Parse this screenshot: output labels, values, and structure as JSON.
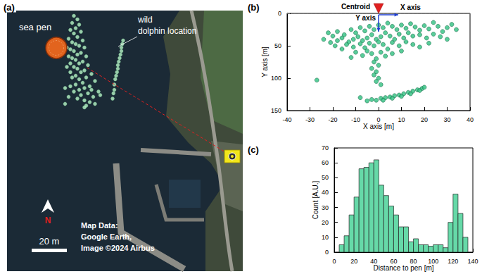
{
  "chart_data": [
    {
      "type": "scatter",
      "title": "(a)",
      "xlim": [
        0,
        134
      ],
      "ylim": [
        0,
        148
      ],
      "tick_labels": false,
      "grid": false,
      "color": "#b9f5c8",
      "marker": "circle",
      "x": [
        38,
        40,
        37,
        41,
        39,
        36,
        42,
        38,
        40,
        35,
        43,
        37,
        39,
        41,
        34,
        44,
        36,
        38,
        42,
        40,
        35,
        45,
        37,
        39,
        43,
        41,
        36,
        46,
        34,
        38,
        40,
        44,
        42,
        36,
        48,
        39,
        45,
        37,
        41,
        50,
        43,
        39,
        47,
        36,
        44,
        41,
        52,
        38,
        46,
        42,
        49,
        40,
        44,
        47,
        35,
        33,
        50,
        45,
        53,
        48,
        44,
        33,
        66,
        65.5,
        65,
        65,
        64.5,
        64,
        63.5,
        63,
        63,
        62.5,
        62,
        61.5,
        61,
        61,
        60.5,
        60
      ],
      "values": [
        145,
        143,
        141,
        140,
        138,
        137,
        136,
        135,
        133,
        132,
        131,
        130,
        129,
        128,
        127,
        127,
        126,
        125,
        124,
        123,
        122,
        122,
        121,
        120,
        119,
        118,
        118,
        117,
        116,
        116,
        115,
        114,
        113,
        113,
        112,
        111,
        110,
        110,
        109,
        108,
        107,
        106,
        105,
        105,
        104,
        103,
        102,
        102,
        101,
        100,
        99,
        98,
        97,
        96,
        99,
        104,
        95,
        94,
        100,
        103,
        93,
        95,
        131,
        129,
        127,
        125,
        123,
        121,
        119,
        117,
        115,
        113,
        111,
        109,
        106,
        103,
        101,
        98
      ],
      "annotations": {
        "sea_pen": {
          "label": "sea pen",
          "x": 28,
          "y": 126.8,
          "radius": 6,
          "color": "#e2641e"
        },
        "points_label": [
          "wild",
          "dolphin location"
        ],
        "camera": {
          "x": 128,
          "y": 65.2,
          "color": "#f2e61a"
        },
        "north": "N",
        "scale_bar": {
          "label": "20 m",
          "length": 20
        },
        "credit": [
          "Map Data:",
          "Google Earth,",
          "Image ©2024 Airbus"
        ]
      }
    },
    {
      "type": "scatter",
      "title": "(b)",
      "xlabel": "X axis [m]",
      "ylabel": "Y axis [m]",
      "xlim": [
        -40,
        40
      ],
      "xticks": [
        -40,
        -30,
        -20,
        -10,
        0,
        10,
        20,
        30,
        40
      ],
      "ylim": [
        150,
        0
      ],
      "yticks": [
        0,
        50,
        100,
        150
      ],
      "grid": false,
      "color": "#2fbf7f",
      "marker": "circle",
      "x": [
        -22,
        -20,
        -18,
        -15,
        -12,
        -10,
        -8,
        -6,
        -4,
        -2,
        0,
        2,
        4,
        6,
        8,
        10,
        12,
        14,
        16,
        18,
        20,
        22,
        24,
        26,
        28,
        30,
        32,
        34,
        -24,
        -21,
        -18,
        -16,
        -13,
        -11,
        -9,
        -7,
        -5,
        -3,
        -1,
        1,
        3,
        5,
        7,
        9,
        11,
        13,
        15,
        18,
        21,
        24,
        27,
        30,
        -19,
        -16,
        -14,
        -11,
        -8,
        -6,
        -4,
        -2,
        0,
        2,
        4,
        6,
        9,
        12,
        15,
        18,
        22,
        -10,
        -7,
        -5,
        -3,
        -1,
        1,
        3,
        -12,
        6,
        10,
        -2,
        0,
        -3,
        -1,
        -2,
        0,
        -1,
        1,
        -27,
        -5,
        -3,
        -1,
        1,
        3,
        5,
        7,
        9,
        11,
        13,
        15,
        17,
        19,
        20,
        2,
        6,
        10,
        14,
        18,
        -8
      ],
      "values": [
        30,
        35,
        28,
        33,
        25,
        30,
        22,
        27,
        20,
        25,
        18,
        22,
        15,
        20,
        25,
        18,
        23,
        16,
        21,
        26,
        19,
        24,
        14,
        20,
        28,
        22,
        17,
        25,
        40,
        45,
        42,
        38,
        44,
        40,
        36,
        42,
        38,
        33,
        40,
        36,
        30,
        35,
        40,
        32,
        38,
        30,
        35,
        33,
        38,
        32,
        36,
        40,
        50,
        55,
        48,
        52,
        47,
        53,
        46,
        50,
        44,
        48,
        55,
        45,
        50,
        44,
        48,
        52,
        46,
        60,
        65,
        58,
        62,
        70,
        60,
        66,
        68,
        62,
        58,
        75,
        80,
        85,
        90,
        95,
        100,
        105,
        110,
        103,
        135,
        133,
        134,
        131,
        130,
        129,
        127,
        126,
        124,
        122,
        120,
        118,
        116,
        114,
        134,
        131,
        128,
        124,
        119,
        130
      ],
      "annotations": {
        "centroid": {
          "label": "Centroid",
          "x": 0,
          "y": 0,
          "color": "#e02020"
        },
        "axis_arrows": {
          "x_label": "X axis",
          "y_label": "Y axis",
          "color": "#1f3fd0"
        }
      }
    },
    {
      "type": "histogram",
      "title": "(c)",
      "xlabel": "Distance to pen [m]",
      "ylabel": "Count [A.U.]",
      "bins": [
        5,
        10,
        15,
        20,
        25,
        30,
        35,
        40,
        45,
        50,
        55,
        60,
        65,
        70,
        75,
        80,
        85,
        90,
        95,
        100,
        105,
        110,
        115,
        120,
        125,
        130,
        135
      ],
      "values": [
        5,
        11,
        25,
        37,
        56,
        57,
        60,
        62,
        45,
        38,
        31,
        25,
        17,
        17,
        7,
        9,
        5,
        5,
        4,
        5,
        5,
        3,
        20,
        39,
        26,
        10
      ],
      "color": "#66d9a8",
      "xlim": [
        0,
        140
      ],
      "xticks": [
        0,
        20,
        40,
        60,
        80,
        100,
        120,
        140
      ],
      "ylim": [
        0,
        70
      ],
      "yticks": [
        0,
        10,
        20,
        30,
        40,
        50,
        60,
        70
      ],
      "grid": false
    }
  ]
}
